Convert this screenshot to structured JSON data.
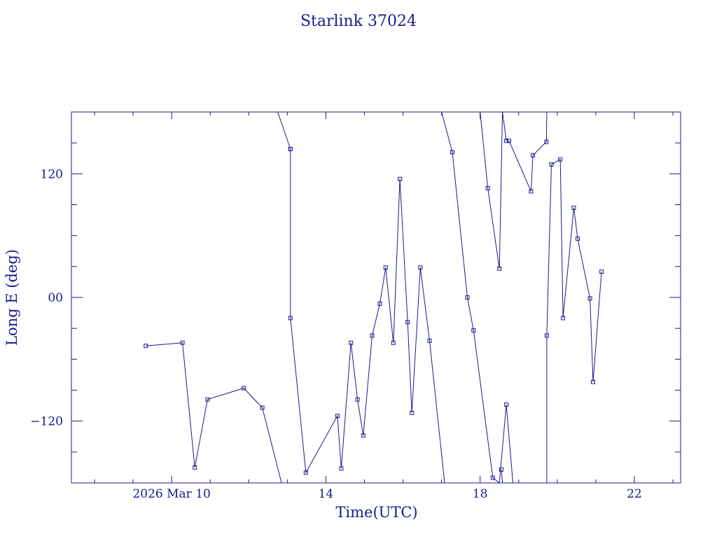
{
  "chart_data": {
    "type": "line",
    "title": "Starlink 37024",
    "xlabel": "Time(UTC)",
    "ylabel": "Long E (deg)",
    "x_unit": "hours (UTC), 2026 Mar 10",
    "xlim": [
      7.4,
      23.2
    ],
    "ylim": [
      -180,
      180
    ],
    "x_ticks": [
      {
        "value": 10,
        "label": "2026 Mar 10"
      },
      {
        "value": 14,
        "label": "14"
      },
      {
        "value": 18,
        "label": "18"
      },
      {
        "value": 22,
        "label": "22"
      }
    ],
    "y_ticks": [
      {
        "value": 120,
        "label": "120"
      },
      {
        "value": 0,
        "label": "00"
      },
      {
        "value": -120,
        "label": "−120"
      }
    ],
    "grid": false,
    "marker": "square",
    "color": "#1a1a8c",
    "series": [
      {
        "x": [
          9.33,
          10.28,
          10.6,
          10.93,
          11.87,
          12.35,
          12.85
        ],
        "y": [
          -47,
          -44,
          -165,
          -99,
          -88,
          -107,
          -180
        ]
      },
      {
        "x": [
          12.75,
          13.08
        ],
        "y": [
          180,
          144
        ]
      },
      {
        "x": [
          13.08,
          13.08,
          13.48,
          14.3,
          14.4,
          14.65,
          14.82,
          14.97,
          15.2,
          15.4,
          15.55,
          15.75,
          15.92,
          16.12,
          16.23,
          16.45,
          16.69,
          17.08
        ],
        "y": [
          144,
          -20,
          -170,
          -115,
          -166,
          -44,
          -99,
          -134,
          -37,
          -6,
          29,
          -44,
          115,
          -24,
          -112,
          29,
          -42,
          -180
        ]
      },
      {
        "x": [
          17.0,
          17.28,
          17.67,
          17.83,
          18.33,
          18.5,
          18.68,
          18.85
        ],
        "y": [
          180,
          141,
          0,
          -32,
          -175,
          -180,
          -104,
          -180
        ]
      },
      {
        "x": [
          18.0,
          18.2,
          18.5,
          18.58,
          18.68
        ],
        "y": [
          180,
          106,
          28,
          180,
          152
        ]
      },
      {
        "x": [
          18.55,
          18.58
        ],
        "y": [
          -167,
          -180
        ]
      },
      {
        "x": [
          18.75,
          19.32,
          19.37,
          19.72,
          19.73
        ],
        "y": [
          152,
          103,
          138,
          151,
          180
        ]
      },
      {
        "x": [
          19.73,
          19.73,
          19.85,
          20.08,
          20.15,
          20.43,
          20.53,
          20.85,
          20.93,
          21.15
        ],
        "y": [
          -180,
          -37,
          129,
          134,
          -20,
          87,
          57,
          -1,
          -82,
          25
        ]
      }
    ]
  }
}
